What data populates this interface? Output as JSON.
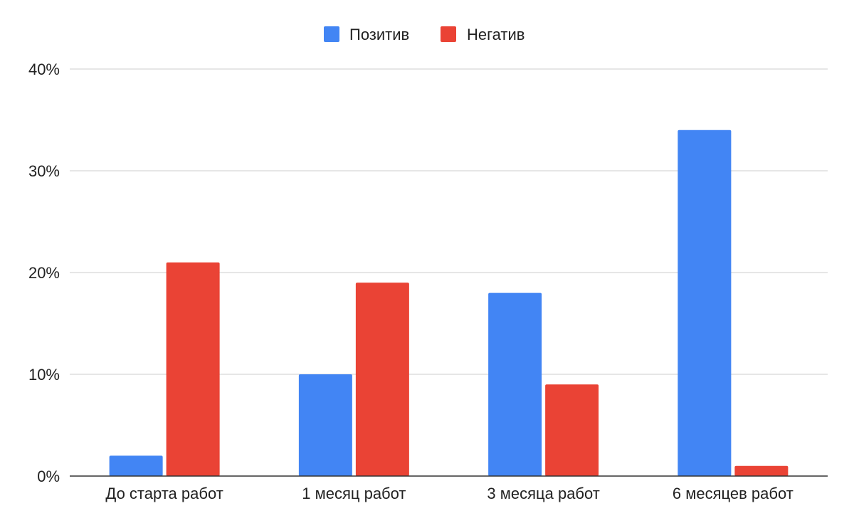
{
  "chart_data": {
    "type": "bar",
    "categories": [
      "До старта работ",
      "1 месяц работ",
      "3 месяца работ",
      "6 месяцев работ"
    ],
    "series": [
      {
        "name": "Позитив",
        "color": "#4285f4",
        "values": [
          2,
          10,
          18,
          34
        ]
      },
      {
        "name": "Негатив",
        "color": "#ea4335",
        "values": [
          21,
          19,
          9,
          1
        ]
      }
    ],
    "y_ticks": [
      "0%",
      "10%",
      "20%",
      "30%",
      "40%"
    ],
    "ylim": [
      0,
      40
    ],
    "y_unit": "%",
    "grid": true,
    "legend_position": "top-center",
    "title": "",
    "xlabel": "",
    "ylabel": ""
  }
}
